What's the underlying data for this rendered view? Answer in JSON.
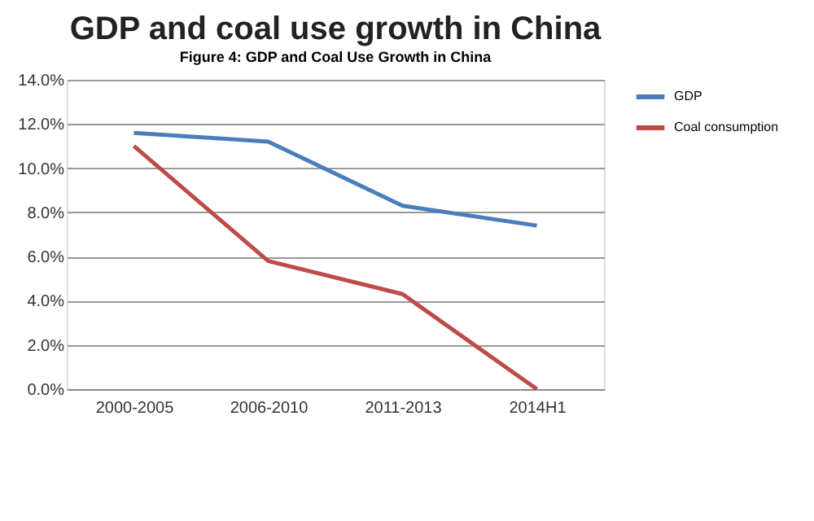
{
  "chart_data": {
    "type": "line",
    "title": "GDP and coal use growth in China",
    "annotations": [
      "Figure 4: GDP and Coal Use Growth in China"
    ],
    "categories": [
      "2000-2005",
      "2006-2010",
      "2011-2013",
      "2014H1"
    ],
    "series": [
      {
        "name": "GDP",
        "color": "#4a7ebb",
        "values": [
          11.6,
          11.2,
          8.3,
          7.4
        ]
      },
      {
        "name": "Coal consumption",
        "color": "#be4b48",
        "values": [
          11.0,
          5.8,
          4.3,
          0.0
        ]
      }
    ],
    "ylim": [
      0,
      14
    ],
    "yticks": [
      {
        "value": 0,
        "label": "0.0%"
      },
      {
        "value": 2,
        "label": "2.0%"
      },
      {
        "value": 4,
        "label": "4.0%"
      },
      {
        "value": 6,
        "label": "6.0%"
      },
      {
        "value": 8,
        "label": "8.0%"
      },
      {
        "value": 10,
        "label": "10.0%"
      },
      {
        "value": 12,
        "label": "12.0%"
      },
      {
        "value": 14,
        "label": "14.0%"
      }
    ],
    "grid": "y",
    "legend": "right",
    "marker": "none",
    "line_style": "solid"
  }
}
